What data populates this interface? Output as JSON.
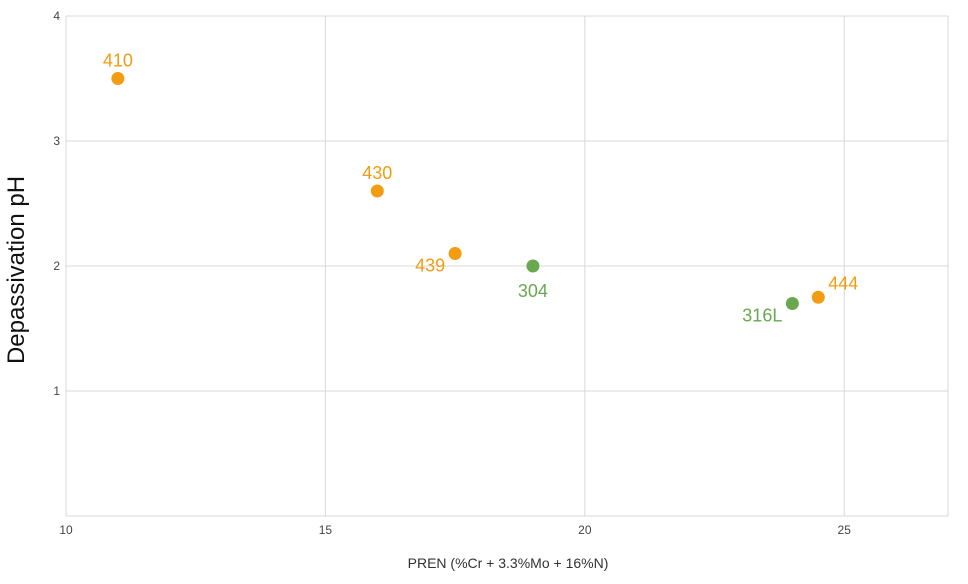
{
  "chart_data": {
    "type": "scatter",
    "xlabel": "PREN (%Cr + 3.3%Mo + 16%N)",
    "ylabel": "Depassivation pH",
    "xlim": [
      10,
      27
    ],
    "ylim": [
      0,
      4
    ],
    "x_ticks": [
      "10",
      "15",
      "20",
      "25"
    ],
    "y_ticks": [
      "1",
      "2",
      "3",
      "4"
    ],
    "grid": true,
    "colors": {
      "orange": "#f39c12",
      "green": "#6aa84f"
    },
    "points": [
      {
        "label": "410",
        "x": 11.0,
        "y": 3.5,
        "color": "#f39c12",
        "label_pos": "above"
      },
      {
        "label": "430",
        "x": 16.0,
        "y": 2.6,
        "color": "#f39c12",
        "label_pos": "above"
      },
      {
        "label": "439",
        "x": 17.5,
        "y": 2.1,
        "color": "#f39c12",
        "label_pos": "below-left"
      },
      {
        "label": "304",
        "x": 19.0,
        "y": 2.0,
        "color": "#6aa84f",
        "label_pos": "below"
      },
      {
        "label": "316L",
        "x": 24.0,
        "y": 1.7,
        "color": "#6aa84f",
        "label_pos": "below-left"
      },
      {
        "label": "444",
        "x": 24.5,
        "y": 1.75,
        "color": "#f39c12",
        "label_pos": "above-right"
      }
    ]
  }
}
